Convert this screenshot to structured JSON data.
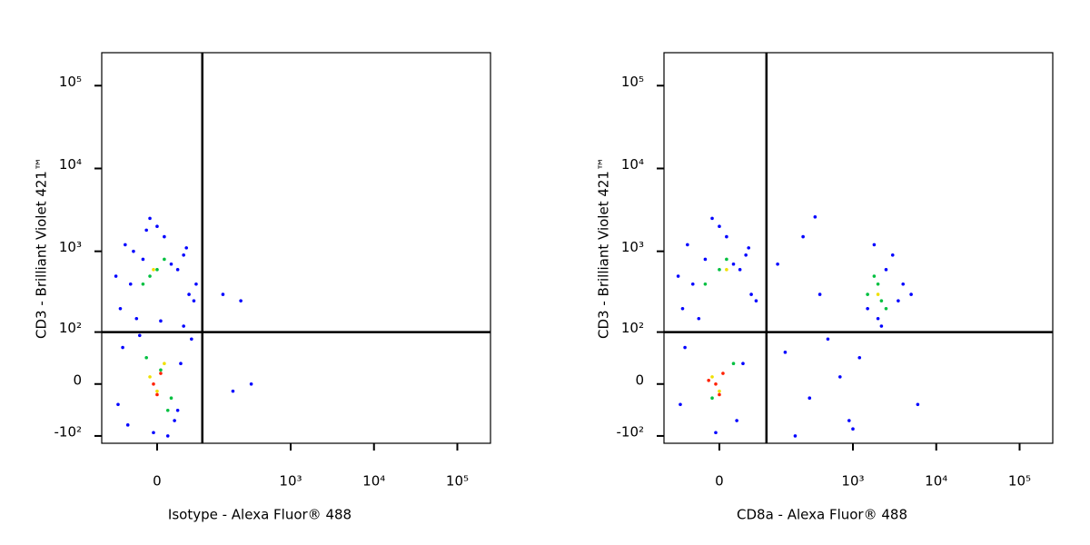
{
  "chart_data": [
    {
      "type": "scatter",
      "xlabel": "Isotype - Alexa Fluor® 488",
      "ylabel": "CD3 - Brilliant Violet 421™",
      "xscale": "biexponential",
      "yscale": "biexponential",
      "xlim": [
        -110,
        250000
      ],
      "ylim": [
        -125,
        250000
      ],
      "xticks": [
        0,
        {
          "value": 1000,
          "label": "10³"
        },
        {
          "value": 10000,
          "label": "10⁴"
        },
        {
          "value": 100000,
          "label": "10⁵"
        }
      ],
      "yticks": [
        {
          "value": -100,
          "label": "-10²"
        },
        0,
        {
          "value": 100,
          "label": "10²"
        },
        {
          "value": 1000,
          "label": "10³"
        },
        {
          "value": 10000,
          "label": "10⁴"
        },
        {
          "value": 100000,
          "label": "10⁵"
        }
      ],
      "gate": {
        "x": 80,
        "y": 100
      },
      "series": [
        {
          "color": "#0000ff",
          "x": [
            -60,
            -40,
            -20,
            10,
            30,
            50,
            -70,
            -50,
            0,
            40,
            60,
            -30,
            20,
            -10,
            45,
            -55,
            25,
            -5,
            35,
            -65,
            55,
            -45,
            15,
            -25,
            5,
            -35,
            65,
            30,
            -15,
            40,
            150,
            250,
            200,
            335
          ],
          "y": [
            200,
            400,
            800,
            1500,
            600,
            300,
            500,
            1200,
            2000,
            900,
            250,
            150,
            700,
            2500,
            1100,
            60,
            -60,
            -90,
            30,
            -30,
            80,
            -70,
            -100,
            90,
            140,
            1000,
            400,
            -40,
            1800,
            120,
            300,
            250,
            -10,
            0
          ]
        },
        {
          "color": "#00c040",
          "x": [
            -20,
            0,
            10,
            -10,
            20,
            5,
            -15,
            15
          ],
          "y": [
            400,
            600,
            800,
            500,
            -20,
            20,
            40,
            -40
          ]
        },
        {
          "color": "#f0e000",
          "x": [
            -10,
            0,
            10,
            -5
          ],
          "y": [
            10,
            -10,
            30,
            600
          ]
        },
        {
          "color": "#ff2000",
          "x": [
            -5,
            0,
            5
          ],
          "y": [
            0,
            -15,
            15
          ]
        }
      ]
    },
    {
      "type": "scatter",
      "xlabel": "CD8a - Alexa Fluor® 488",
      "ylabel": "CD3 - Brilliant Violet 421™",
      "xscale": "biexponential",
      "yscale": "biexponential",
      "xlim": [
        -110,
        250000
      ],
      "ylim": [
        -125,
        250000
      ],
      "xticks": [
        0,
        {
          "value": 1000,
          "label": "10³"
        },
        {
          "value": 10000,
          "label": "10⁴"
        },
        {
          "value": 100000,
          "label": "10⁵"
        }
      ],
      "yticks": [
        {
          "value": -100,
          "label": "-10²"
        },
        0,
        {
          "value": 100,
          "label": "10²"
        },
        {
          "value": 1000,
          "label": "10³"
        },
        {
          "value": 10000,
          "label": "10⁴"
        },
        {
          "value": 100000,
          "label": "10⁵"
        }
      ],
      "gate": {
        "x": 85,
        "y": 100
      },
      "series": [
        {
          "color": "#0000ff",
          "x": [
            -60,
            -40,
            -20,
            10,
            30,
            50,
            -70,
            -50,
            0,
            40,
            60,
            -30,
            20,
            -10,
            45,
            -55,
            25,
            -5,
            35,
            -65,
            150,
            300,
            500,
            700,
            250,
            400,
            900,
            1200,
            1500,
            2000,
            2500,
            3000,
            4000,
            1800,
            2200,
            3500,
            1000,
            5000,
            6000,
            200,
            120,
            350
          ],
          "y": [
            200,
            400,
            800,
            1500,
            600,
            300,
            500,
            1200,
            2000,
            900,
            250,
            150,
            700,
            2500,
            1100,
            60,
            -60,
            -90,
            30,
            -30,
            50,
            -20,
            80,
            10,
            1500,
            300,
            -60,
            40,
            200,
            150,
            600,
            900,
            400,
            1200,
            120,
            250,
            -80,
            300,
            -30,
            -100,
            700,
            2600
          ]
        },
        {
          "color": "#00c040",
          "x": [
            1500,
            2000,
            2200,
            1800,
            2500,
            -20,
            0,
            10,
            -10,
            20
          ],
          "y": [
            300,
            400,
            250,
            500,
            200,
            400,
            600,
            800,
            -20,
            30
          ]
        },
        {
          "color": "#f0e000",
          "x": [
            2000,
            -10,
            0,
            10
          ],
          "y": [
            300,
            10,
            -10,
            600
          ]
        },
        {
          "color": "#ff2000",
          "x": [
            -5,
            0,
            5,
            -15
          ],
          "y": [
            0,
            -15,
            15,
            5
          ]
        }
      ]
    }
  ]
}
